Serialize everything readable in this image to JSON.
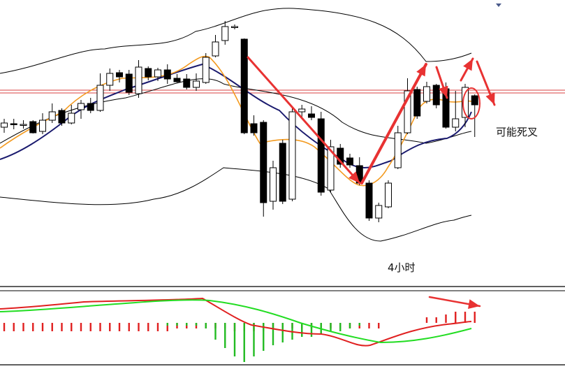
{
  "chart_data": [
    {
      "type": "candlestick",
      "panel": "price",
      "timeframe_label": "4小时",
      "annotation": "可能死叉",
      "colors": {
        "bull_body": "#ffffff",
        "bear_body": "#000000",
        "ma_fast": "#f39a1f",
        "ma_slow": "#1a1a6e",
        "bands": "#000000",
        "hline": "#d94040",
        "arrow": "#e83232"
      },
      "candles": [
        [
          0,
          182,
          176,
          190,
          170
        ],
        [
          1,
          177,
          178,
          185,
          170
        ],
        [
          2,
          178,
          178,
          184,
          172
        ],
        [
          3,
          174,
          190,
          191,
          172
        ],
        [
          4,
          188,
          172,
          192,
          162
        ],
        [
          5,
          172,
          160,
          176,
          148
        ],
        [
          6,
          158,
          176,
          180,
          155
        ],
        [
          7,
          176,
          162,
          178,
          150
        ],
        [
          8,
          157,
          148,
          170,
          143
        ],
        [
          9,
          148,
          158,
          162,
          140
        ],
        [
          10,
          158,
          122,
          160,
          105
        ],
        [
          11,
          122,
          105,
          130,
          98
        ],
        [
          12,
          104,
          110,
          118,
          100
        ],
        [
          13,
          106,
          132,
          136,
          100
        ],
        [
          14,
          134,
          96,
          140,
          86
        ],
        [
          15,
          98,
          110,
          115,
          95
        ],
        [
          16,
          110,
          100,
          116,
          97
        ],
        [
          17,
          100,
          113,
          120,
          92
        ],
        [
          18,
          112,
          117,
          118,
          106
        ],
        [
          19,
          113,
          125,
          128,
          106
        ],
        [
          20,
          125,
          116,
          130,
          105
        ],
        [
          21,
          118,
          82,
          120,
          76
        ],
        [
          22,
          80,
          60,
          82,
          50
        ],
        [
          23,
          58,
          38,
          64,
          30
        ],
        [
          24,
          38,
          38,
          42,
          35
        ],
        [
          25,
          56,
          190,
          192,
          55
        ],
        [
          26,
          177,
          190,
          194,
          165
        ],
        [
          27,
          175,
          290,
          310,
          172
        ],
        [
          28,
          288,
          240,
          300,
          230
        ],
        [
          29,
          205,
          288,
          292,
          200
        ],
        [
          30,
          285,
          160,
          288,
          155
        ],
        [
          31,
          160,
          156,
          170,
          150
        ],
        [
          32,
          163,
          168,
          172,
          152
        ],
        [
          33,
          170,
          275,
          280,
          160
        ],
        [
          34,
          272,
          210,
          275,
          200
        ],
        [
          35,
          212,
          235,
          240,
          206
        ],
        [
          36,
          226,
          236,
          240,
          220
        ],
        [
          37,
          237,
          262,
          265,
          225
        ],
        [
          38,
          262,
          312,
          316,
          258
        ],
        [
          39,
          312,
          294,
          318,
          290
        ],
        [
          40,
          296,
          262,
          298,
          258
        ],
        [
          41,
          240,
          190,
          242,
          180
        ],
        [
          42,
          190,
          130,
          192,
          112
        ],
        [
          43,
          128,
          166,
          170,
          124
        ],
        [
          44,
          145,
          124,
          148,
          117
        ],
        [
          45,
          122,
          150,
          155,
          120
        ],
        [
          46,
          127,
          182,
          184,
          118
        ],
        [
          47,
          182,
          170,
          188,
          130
        ],
        [
          48,
          168,
          125,
          182,
          120
        ],
        [
          49,
          137,
          150,
          196,
          135
        ]
      ],
      "hlines": [
        129,
        133
      ]
    },
    {
      "type": "bar",
      "panel": "macd",
      "series": [
        {
          "color": "#e02020",
          "values": [
            -3,
            -3,
            -3,
            -3,
            -3,
            -3,
            -3,
            -3,
            -3,
            -3,
            -3,
            -3,
            -3,
            -3,
            -3,
            -3,
            -3,
            -3,
            -2,
            -2,
            -2,
            -2,
            -2,
            -2,
            -3,
            -3,
            -3,
            -3,
            -2,
            -2,
            -2,
            -2,
            -2,
            -2,
            -2,
            -2,
            -2,
            -2,
            -2,
            -2,
            0,
            0,
            0,
            0,
            2,
            2,
            3,
            4,
            4,
            4
          ]
        },
        {
          "color": "#22bb22",
          "values": [
            0,
            0,
            0,
            0,
            0,
            0,
            0,
            0,
            0,
            0,
            0,
            0,
            0,
            0,
            0,
            0,
            0,
            -1,
            -1,
            -1,
            -1,
            -2,
            -6,
            -9,
            -12,
            -14,
            -12,
            -10,
            -8,
            -7,
            -6,
            -5,
            -5,
            -4,
            -3,
            -3,
            -2,
            -1,
            0,
            0,
            0,
            0,
            0,
            0,
            0,
            0,
            0,
            0,
            0,
            0
          ]
        }
      ]
    }
  ]
}
